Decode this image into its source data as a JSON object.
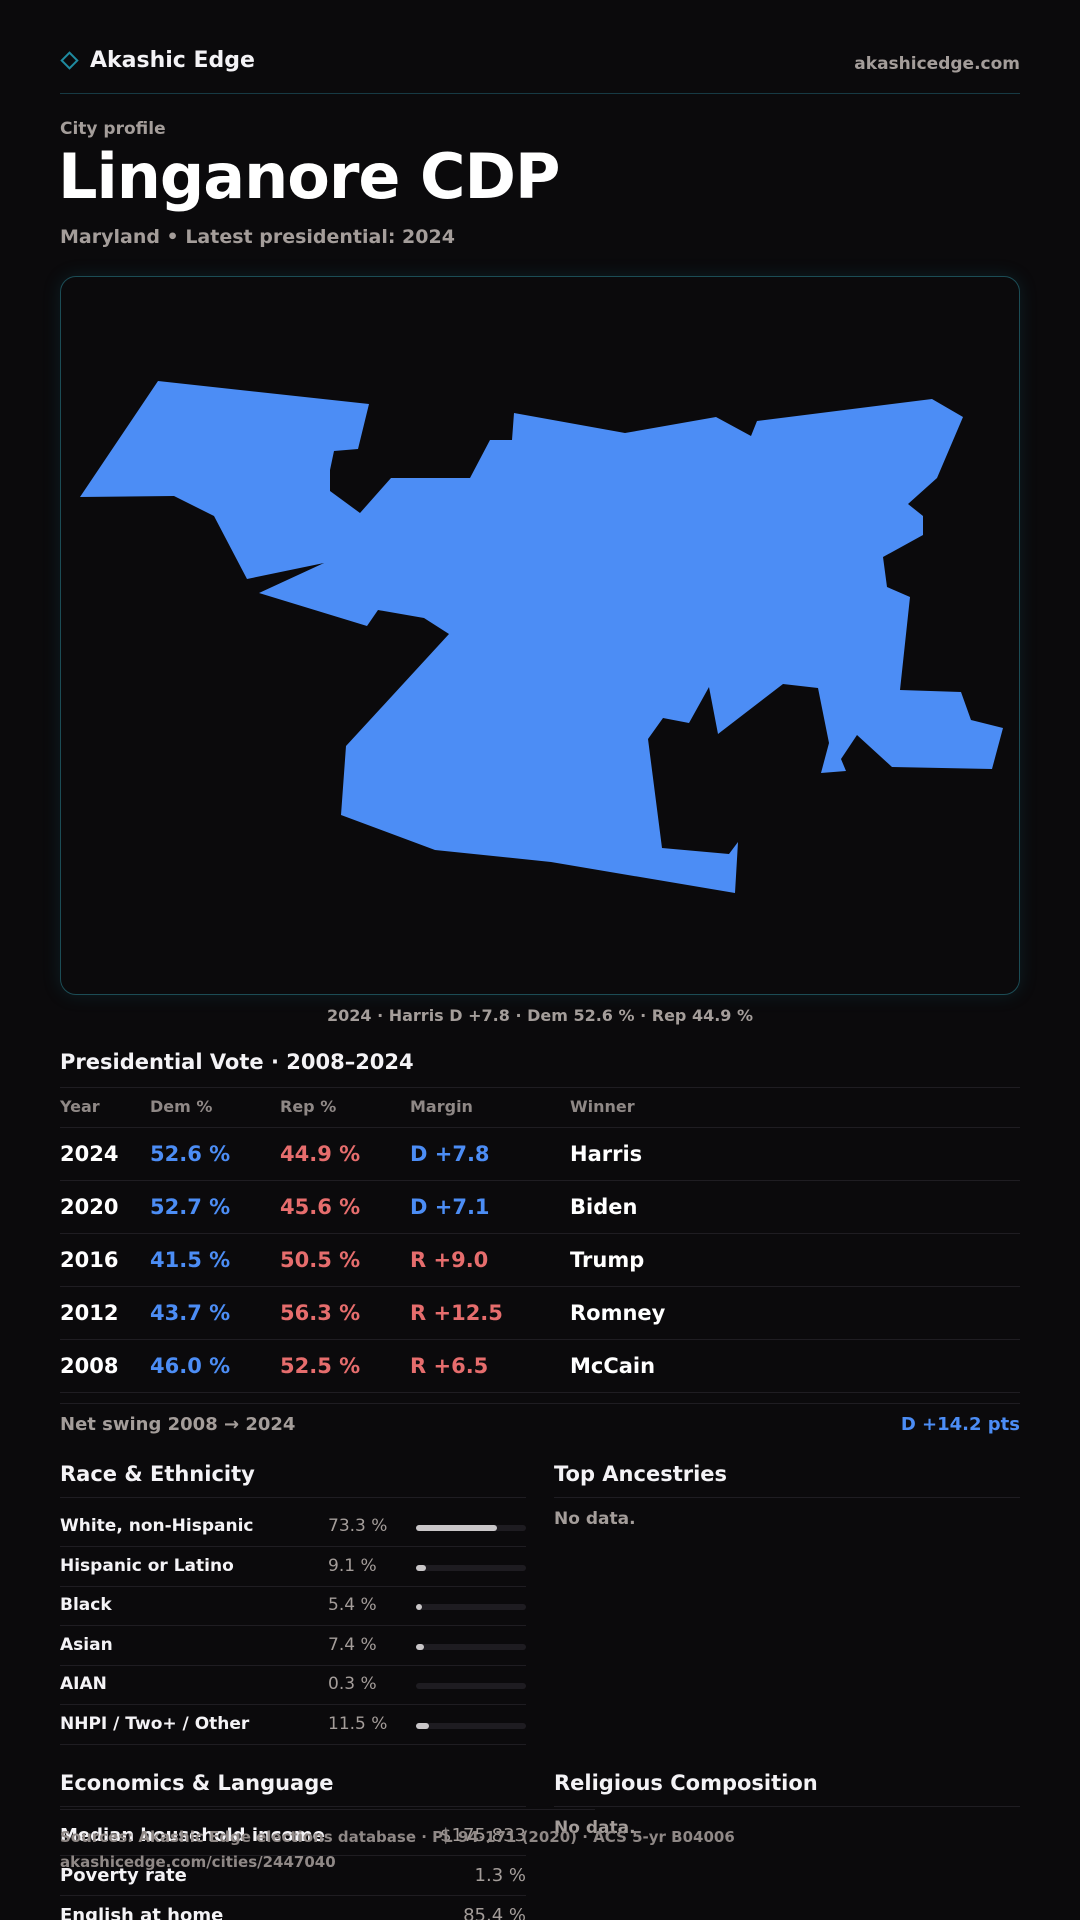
{
  "header": {
    "brand": "Akashic Edge",
    "domain": "akashicedge.com"
  },
  "page": {
    "eyebrow": "City profile",
    "title": "Linganore CDP",
    "subtitle": "Maryland • Latest presidential: 2024"
  },
  "map": {
    "fill_color": "#4c8df5",
    "caption": "2024 · Harris D +7.8 · Dem 52.6 % · Rep 44.9 %"
  },
  "colors": {
    "dem": "#4c8df5",
    "rep": "#e66d6d"
  },
  "presidential": {
    "title": "Presidential Vote · 2008–2024",
    "headers": [
      "Year",
      "Dem %",
      "Rep %",
      "Margin",
      "Winner"
    ],
    "rows": [
      {
        "year": "2024",
        "dem": "52.6 %",
        "rep": "44.9 %",
        "margin": "D +7.8",
        "party": "D",
        "winner": "Harris"
      },
      {
        "year": "2020",
        "dem": "52.7 %",
        "rep": "45.6 %",
        "margin": "D +7.1",
        "party": "D",
        "winner": "Biden"
      },
      {
        "year": "2016",
        "dem": "41.5 %",
        "rep": "50.5 %",
        "margin": "R +9.0",
        "party": "R",
        "winner": "Trump"
      },
      {
        "year": "2012",
        "dem": "43.7 %",
        "rep": "56.3 %",
        "margin": "R +12.5",
        "party": "R",
        "winner": "Romney"
      },
      {
        "year": "2008",
        "dem": "46.0 %",
        "rep": "52.5 %",
        "margin": "R +6.5",
        "party": "R",
        "winner": "McCain"
      }
    ],
    "swing_label": "Net swing 2008 → 2024",
    "swing_value": "D +14.2 pts"
  },
  "race": {
    "title": "Race & Ethnicity",
    "rows": [
      {
        "label": "White, non-Hispanic",
        "value": "73.3 %",
        "share": 0.733
      },
      {
        "label": "Hispanic or Latino",
        "value": "9.1 %",
        "share": 0.091
      },
      {
        "label": "Black",
        "value": "5.4 %",
        "share": 0.054
      },
      {
        "label": "Asian",
        "value": "7.4 %",
        "share": 0.074
      },
      {
        "label": "AIAN",
        "value": "0.3 %",
        "share": 0.003
      },
      {
        "label": "NHPI / Two+ / Other",
        "value": "11.5 %",
        "share": 0.115
      }
    ]
  },
  "ancestries": {
    "title": "Top Ancestries",
    "empty": "No data."
  },
  "economics": {
    "title": "Economics & Language",
    "rows": [
      {
        "label": "Median household income",
        "value": "$175,833"
      },
      {
        "label": "Poverty rate",
        "value": "1.3 %"
      },
      {
        "label": "English at home",
        "value": "85.4 %"
      }
    ]
  },
  "religion": {
    "title": "Religious Composition",
    "empty": "No data."
  },
  "footer": {
    "sources": "Sources: Akashic Edge elections database · PL 94-171 (2020) · ACS 5-yr B04006",
    "url": "akashicedge.com/cities/2447040"
  }
}
